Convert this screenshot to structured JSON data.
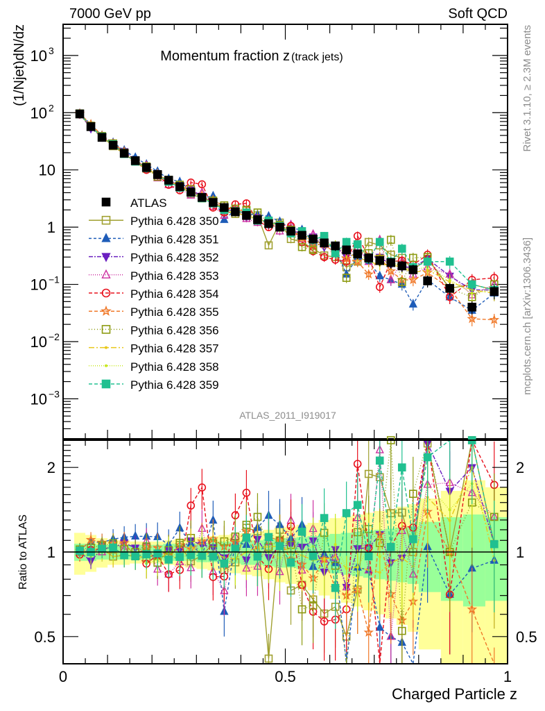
{
  "chart_data": [
    {
      "type": "scatter",
      "panel": "main",
      "title": "Momentum fraction z",
      "title_suffix": "(track jets)",
      "top_left_label": "7000 GeV pp",
      "top_right_label": "Soft QCD",
      "ylabel": "(1/Njet)dN/dz",
      "xlabel": "Charged Particle z",
      "yscale": "log",
      "ylim": [
        0.0002,
        3500
      ],
      "xlim": [
        0,
        1
      ],
      "y_tick_labels": [
        {
          "v": 1000,
          "base": "10",
          "exp": "3"
        },
        {
          "v": 100,
          "base": "10",
          "exp": "2"
        },
        {
          "v": 10,
          "base": "10",
          "exp": ""
        },
        {
          "v": 1,
          "base": "1",
          "exp": ""
        },
        {
          "v": 0.1,
          "base": "10",
          "exp": "−1"
        },
        {
          "v": 0.01,
          "base": "10",
          "exp": "−2"
        },
        {
          "v": 0.001,
          "base": "10",
          "exp": "−3"
        }
      ],
      "analysis_label": "ATLAS_2011_I919017",
      "side_labels": [
        "Rivet 3.1.10, ≥ 2.3M events",
        "mcplots.cern.ch [arXiv:1306.3436]"
      ],
      "legend_position": "center-left",
      "x": [
        0.0375,
        0.0625,
        0.0875,
        0.1125,
        0.1375,
        0.1625,
        0.1875,
        0.2125,
        0.2375,
        0.2625,
        0.2875,
        0.3125,
        0.3375,
        0.3625,
        0.3875,
        0.4125,
        0.4375,
        0.4625,
        0.4875,
        0.5125,
        0.5375,
        0.5625,
        0.5875,
        0.6125,
        0.6375,
        0.6625,
        0.6875,
        0.7125,
        0.7375,
        0.7625,
        0.7875,
        0.82,
        0.87,
        0.92,
        0.97
      ],
      "series": [
        {
          "name": "ATLAS",
          "color": "#000000",
          "marker": "fsquare",
          "dash": "none",
          "values": [
            95,
            57,
            37,
            27,
            19.5,
            14.5,
            11,
            8.3,
            6.6,
            5.1,
            4.1,
            3.3,
            2.7,
            2.2,
            1.85,
            1.6,
            1.35,
            1.15,
            1.0,
            0.85,
            0.72,
            0.62,
            0.53,
            0.47,
            0.4,
            0.34,
            0.29,
            0.26,
            0.24,
            0.21,
            0.18,
            0.115,
            0.085,
            0.04,
            0.075
          ]
        },
        {
          "name": "Pythia 6.428 350",
          "color": "#a0a030",
          "marker": "osquare",
          "dash": "none",
          "values": [
            95,
            57,
            38,
            26,
            19,
            14,
            10.5,
            8.1,
            6.3,
            5.4,
            3.8,
            3.2,
            2.9,
            1.9,
            1.7,
            1.95,
            1.6,
            0.48,
            1.2,
            0.62,
            0.55,
            0.42,
            0.32,
            0.3,
            0.2,
            0.25,
            0.55,
            0.48,
            0.33,
            0.29,
            0.18,
            0.28,
            0.085,
            0.1,
            0.08
          ]
        },
        {
          "name": "Pythia 6.428 351",
          "color": "#1e5cb8",
          "marker": "ftriup",
          "dash": "4,3",
          "values": [
            97,
            62,
            40,
            30,
            22,
            16.5,
            12.5,
            9.4,
            7.0,
            6.2,
            4.4,
            3.2,
            3.5,
            1.35,
            2.0,
            1.7,
            1.65,
            1.55,
            1.25,
            0.95,
            0.9,
            0.55,
            0.52,
            0.43,
            0.15,
            0.3,
            0.25,
            0.14,
            0.12,
            0.1,
            0.045,
            0.12,
            0.06,
            0.035,
            0.07
          ]
        },
        {
          "name": "Pythia 6.428 352",
          "color": "#6a1fc0",
          "marker": "ftridown",
          "dash": "6,2,2,2",
          "values": [
            95,
            53,
            38,
            28,
            21,
            15,
            10.8,
            8.0,
            6.7,
            5.2,
            4.5,
            3.5,
            2.8,
            2.1,
            1.9,
            1.5,
            1.5,
            1.1,
            1.05,
            0.9,
            0.75,
            0.68,
            0.45,
            0.48,
            0.3,
            0.35,
            0.3,
            0.3,
            0.22,
            0.2,
            0.2,
            0.28,
            0.14,
            0.08,
            0.08
          ]
        },
        {
          "name": "Pythia 6.428 353",
          "color": "#cc2ea0",
          "marker": "otriup",
          "dash": "1,2",
          "values": [
            96,
            58,
            37,
            29,
            20,
            14,
            12,
            7.2,
            5.5,
            4.7,
            3.6,
            4.0,
            2.3,
            1.6,
            2.1,
            1.4,
            1.2,
            1.25,
            0.85,
            1.1,
            0.62,
            0.75,
            0.5,
            0.45,
            0.3,
            0.45,
            0.25,
            0.6,
            0.12,
            0.25,
            0.15,
            0.2,
            0.15,
            0.065,
            0.1
          ]
        },
        {
          "name": "Pythia 6.428 354",
          "color": "#e8101c",
          "marker": "ocircle",
          "dash": "5,3",
          "values": [
            93,
            58,
            38,
            28,
            19,
            14,
            10,
            8.1,
            5.5,
            4.4,
            6.0,
            5.6,
            2.2,
            1.8,
            2.5,
            2.6,
            1.3,
            1.0,
            1.1,
            1.05,
            0.55,
            0.38,
            0.3,
            0.27,
            0.25,
            0.7,
            0.3,
            0.09,
            0.25,
            0.26,
            0.22,
            0.33,
            0.06,
            0.12,
            0.13
          ]
        },
        {
          "name": "Pythia 6.428 355",
          "color": "#f07828",
          "marker": "ostar",
          "dash": "5,3",
          "values": [
            96,
            63,
            40,
            29,
            21,
            14,
            11.5,
            8.6,
            6.3,
            5.4,
            4.2,
            3.6,
            3.0,
            2.3,
            2.0,
            1.9,
            1.3,
            1.3,
            1.1,
            0.8,
            0.65,
            0.5,
            0.5,
            0.35,
            0.28,
            0.25,
            0.15,
            0.3,
            0.17,
            0.12,
            0.12,
            0.16,
            0.085,
            0.025,
            0.024
          ]
        },
        {
          "name": "Pythia 6.428 356",
          "color": "#8c9a10",
          "marker": "osquare",
          "dash": "1,3",
          "values": [
            97,
            59,
            39,
            29,
            20,
            14.5,
            11.5,
            7.6,
            6.7,
            5.5,
            4.6,
            3.2,
            2.9,
            2.4,
            2.1,
            2.0,
            1.8,
            1.2,
            1.1,
            0.9,
            0.45,
            0.4,
            0.62,
            0.42,
            0.13,
            0.4,
            0.35,
            0.28,
            0.6,
            0.11,
            0.29,
            0.3,
            0.085,
            0.06,
            0.1
          ]
        },
        {
          "name": "Pythia 6.428 357",
          "color": "#e8c818",
          "marker": "fdot",
          "dash": "8,3,2,3",
          "values": [
            95,
            58,
            38,
            26,
            19,
            14,
            10.5,
            8.3,
            6.3,
            4.9,
            4.3,
            3.2,
            2.7,
            2.1,
            1.75,
            1.6,
            1.4,
            1.2,
            1.05,
            0.85,
            0.7,
            0.58,
            0.5,
            0.45,
            0.35,
            0.3,
            0.25,
            0.22,
            0.22,
            0.2,
            0.16,
            0.18,
            0.11,
            0.08,
            0.07
          ]
        },
        {
          "name": "Pythia 6.428 358",
          "color": "#c8e820",
          "marker": "fdot",
          "dash": "1,2",
          "values": [
            94,
            55,
            37,
            27,
            19,
            14,
            10,
            7.8,
            6.6,
            4.9,
            4.0,
            3.4,
            2.6,
            2.0,
            1.75,
            1.6,
            1.3,
            1.15,
            0.95,
            0.88,
            0.72,
            0.65,
            0.5,
            0.5,
            0.35,
            0.3,
            0.3,
            0.25,
            0.25,
            0.2,
            0.18,
            0.2,
            0.12,
            0.07,
            0.08
          ]
        },
        {
          "name": "Pythia 6.428 359",
          "color": "#20c090",
          "marker": "fsquare",
          "dash": "5,3",
          "values": [
            96,
            57,
            38,
            28,
            19,
            14,
            10.8,
            8.2,
            6.2,
            4.9,
            4.0,
            3.2,
            2.6,
            2.0,
            1.9,
            1.8,
            1.3,
            1.3,
            1.05,
            0.78,
            0.85,
            0.6,
            0.7,
            0.35,
            0.55,
            0.5,
            0.28,
            0.55,
            0.25,
            0.42,
            0.2,
            0.25,
            0.25,
            0.1,
            0.08
          ]
        }
      ]
    },
    {
      "type": "scatter",
      "panel": "ratio",
      "ylabel": "Ratio to ATLAS",
      "xlabel": "Charged Particle z",
      "yscale": "log",
      "ylim": [
        0.4,
        2.5
      ],
      "xlim": [
        0,
        1
      ],
      "y_tick_labels": [
        "2",
        "1",
        "0.5"
      ],
      "x_tick_labels": [
        "0",
        "0.5",
        "1"
      ],
      "reference": 1,
      "bins": [
        [
          0.025,
          0.05
        ],
        [
          0.05,
          0.075
        ],
        [
          0.075,
          0.1
        ],
        [
          0.1,
          0.125
        ],
        [
          0.125,
          0.15
        ],
        [
          0.15,
          0.175
        ],
        [
          0.175,
          0.2
        ],
        [
          0.2,
          0.225
        ],
        [
          0.225,
          0.25
        ],
        [
          0.25,
          0.275
        ],
        [
          0.275,
          0.3
        ],
        [
          0.3,
          0.325
        ],
        [
          0.325,
          0.35
        ],
        [
          0.35,
          0.375
        ],
        [
          0.375,
          0.4
        ],
        [
          0.4,
          0.425
        ],
        [
          0.425,
          0.45
        ],
        [
          0.45,
          0.475
        ],
        [
          0.475,
          0.5
        ],
        [
          0.5,
          0.525
        ],
        [
          0.525,
          0.55
        ],
        [
          0.55,
          0.575
        ],
        [
          0.575,
          0.6
        ],
        [
          0.6,
          0.625
        ],
        [
          0.625,
          0.65
        ],
        [
          0.65,
          0.675
        ],
        [
          0.675,
          0.7
        ],
        [
          0.7,
          0.725
        ],
        [
          0.725,
          0.75
        ],
        [
          0.75,
          0.775
        ],
        [
          0.775,
          0.8
        ],
        [
          0.8,
          0.85
        ],
        [
          0.85,
          0.9
        ],
        [
          0.9,
          0.95
        ],
        [
          0.95,
          1.0
        ]
      ],
      "band_stat_green": [
        0.07,
        0.07,
        0.06,
        0.06,
        0.06,
        0.06,
        0.06,
        0.06,
        0.07,
        0.07,
        0.07,
        0.08,
        0.08,
        0.09,
        0.09,
        0.1,
        0.1,
        0.11,
        0.12,
        0.12,
        0.13,
        0.14,
        0.15,
        0.16,
        0.17,
        0.18,
        0.19,
        0.2,
        0.21,
        0.22,
        0.23,
        0.28,
        0.33,
        0.36,
        0.33
      ],
      "band_total_yellow": [
        0.17,
        0.15,
        0.12,
        0.1,
        0.1,
        0.09,
        0.09,
        0.09,
        0.1,
        0.11,
        0.12,
        0.13,
        0.14,
        0.15,
        0.16,
        0.17,
        0.18,
        0.2,
        0.22,
        0.23,
        0.25,
        0.27,
        0.3,
        0.32,
        0.34,
        0.36,
        0.38,
        0.4,
        0.42,
        0.45,
        0.48,
        0.55,
        0.65,
        0.8,
        0.7
      ],
      "series_ratio_from": "main"
    }
  ]
}
